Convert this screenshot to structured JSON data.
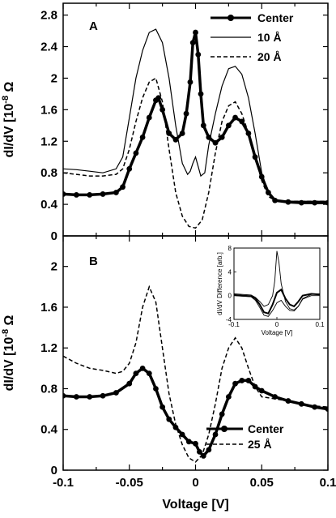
{
  "chart_data": [
    {
      "panel": "A",
      "type": "line",
      "xlabel": "Voltage [V]",
      "ylabel": "dI/dV [10^-8 Ω^-1]",
      "xlim": [
        -0.1,
        0.1
      ],
      "ylim": [
        0,
        2.95
      ],
      "yticks": [
        0,
        0.4,
        0.8,
        1.2,
        1.6,
        2,
        2.4,
        2.8
      ],
      "ytick_labels": [
        "0",
        "0.4",
        "0.8",
        "1.2",
        "1.6",
        "2",
        "2.4",
        "2.8"
      ],
      "legend_position": "top-right",
      "series": [
        {
          "name": "Center",
          "style": "thick-markers",
          "x": [
            -0.1,
            -0.09,
            -0.08,
            -0.07,
            -0.06,
            -0.055,
            -0.05,
            -0.045,
            -0.04,
            -0.035,
            -0.03,
            -0.028,
            -0.025,
            -0.02,
            -0.015,
            -0.01,
            -0.007,
            -0.004,
            -0.002,
            0,
            0.002,
            0.004,
            0.006,
            0.01,
            0.015,
            0.02,
            0.025,
            0.03,
            0.035,
            0.04,
            0.045,
            0.05,
            0.055,
            0.06,
            0.07,
            0.08,
            0.09,
            0.1
          ],
          "y": [
            0.53,
            0.52,
            0.52,
            0.53,
            0.55,
            0.62,
            0.85,
            1.05,
            1.25,
            1.5,
            1.72,
            1.75,
            1.6,
            1.3,
            1.22,
            1.3,
            1.55,
            1.95,
            2.45,
            2.58,
            2.3,
            1.8,
            1.4,
            1.25,
            1.18,
            1.25,
            1.4,
            1.5,
            1.45,
            1.3,
            1.0,
            0.75,
            0.55,
            0.45,
            0.43,
            0.42,
            0.42,
            0.42
          ]
        },
        {
          "name": "10 Å",
          "style": "thin-solid",
          "x": [
            -0.1,
            -0.09,
            -0.08,
            -0.07,
            -0.06,
            -0.055,
            -0.05,
            -0.045,
            -0.04,
            -0.035,
            -0.03,
            -0.025,
            -0.02,
            -0.015,
            -0.01,
            -0.006,
            -0.004,
            -0.002,
            0,
            0.002,
            0.004,
            0.007,
            0.01,
            0.015,
            0.02,
            0.025,
            0.03,
            0.035,
            0.04,
            0.045,
            0.05,
            0.055,
            0.06,
            0.07,
            0.08,
            0.09,
            0.1
          ],
          "y": [
            0.85,
            0.84,
            0.82,
            0.8,
            0.85,
            1.0,
            1.5,
            2.0,
            2.35,
            2.58,
            2.62,
            2.45,
            2.0,
            1.4,
            0.92,
            0.78,
            0.82,
            0.92,
            1.0,
            0.88,
            0.76,
            0.8,
            1.15,
            1.55,
            1.9,
            2.12,
            2.15,
            2.05,
            1.75,
            1.3,
            0.8,
            0.55,
            0.45,
            0.44,
            0.44,
            0.44,
            0.44
          ]
        },
        {
          "name": "20 Å",
          "style": "dashed",
          "x": [
            -0.1,
            -0.09,
            -0.08,
            -0.07,
            -0.06,
            -0.055,
            -0.05,
            -0.045,
            -0.04,
            -0.035,
            -0.03,
            -0.025,
            -0.02,
            -0.015,
            -0.01,
            -0.005,
            0,
            0.005,
            0.01,
            0.015,
            0.02,
            0.025,
            0.03,
            0.035,
            0.04,
            0.045,
            0.05,
            0.055,
            0.06,
            0.07,
            0.08,
            0.09,
            0.1
          ],
          "y": [
            0.8,
            0.78,
            0.76,
            0.76,
            0.78,
            0.85,
            1.1,
            1.45,
            1.75,
            1.95,
            2.0,
            1.7,
            1.1,
            0.55,
            0.25,
            0.12,
            0.1,
            0.2,
            0.55,
            1.05,
            1.45,
            1.65,
            1.7,
            1.55,
            1.3,
            1.0,
            0.7,
            0.5,
            0.45,
            0.44,
            0.44,
            0.44,
            0.44
          ]
        }
      ]
    },
    {
      "panel": "B",
      "type": "line",
      "xlabel": "Voltage [V]",
      "ylabel": "dI/dV [10^-8 Ω^-1]",
      "xlim": [
        -0.1,
        0.1
      ],
      "ylim": [
        0,
        2.3
      ],
      "yticks": [
        0,
        0.4,
        0.8,
        1.2,
        1.6,
        2
      ],
      "ytick_labels": [
        "0",
        "0.4",
        "0.8",
        "1.2",
        "1.6",
        "2"
      ],
      "xticks": [
        -0.1,
        -0.05,
        0,
        0.05,
        0.1
      ],
      "xtick_labels": [
        "-0.1",
        "-0.05",
        "0",
        "0.05",
        "0.1"
      ],
      "legend_position": "bottom-right",
      "series": [
        {
          "name": "Center",
          "style": "thick-markers",
          "x": [
            -0.1,
            -0.09,
            -0.08,
            -0.07,
            -0.06,
            -0.05,
            -0.045,
            -0.04,
            -0.035,
            -0.03,
            -0.025,
            -0.02,
            -0.015,
            -0.01,
            -0.005,
            0,
            0.003,
            0.006,
            0.01,
            0.015,
            0.02,
            0.025,
            0.03,
            0.035,
            0.04,
            0.045,
            0.05,
            0.06,
            0.07,
            0.08,
            0.09,
            0.1
          ],
          "y": [
            0.73,
            0.72,
            0.72,
            0.73,
            0.76,
            0.85,
            0.95,
            1.0,
            0.95,
            0.8,
            0.62,
            0.5,
            0.42,
            0.35,
            0.28,
            0.26,
            0.18,
            0.14,
            0.2,
            0.35,
            0.55,
            0.72,
            0.85,
            0.88,
            0.88,
            0.82,
            0.78,
            0.72,
            0.68,
            0.65,
            0.62,
            0.6
          ]
        },
        {
          "name": "25 Å",
          "style": "dashed",
          "x": [
            -0.1,
            -0.09,
            -0.08,
            -0.07,
            -0.06,
            -0.055,
            -0.05,
            -0.045,
            -0.04,
            -0.035,
            -0.03,
            -0.025,
            -0.02,
            -0.015,
            -0.01,
            -0.005,
            0,
            0.005,
            0.01,
            0.015,
            0.02,
            0.025,
            0.03,
            0.035,
            0.04,
            0.045,
            0.05,
            0.06,
            0.07,
            0.08,
            0.09,
            0.1
          ],
          "y": [
            1.12,
            1.05,
            1.0,
            0.98,
            0.95,
            0.97,
            1.05,
            1.25,
            1.6,
            1.8,
            1.65,
            1.2,
            0.75,
            0.45,
            0.25,
            0.12,
            0.08,
            0.15,
            0.35,
            0.65,
            1.0,
            1.2,
            1.3,
            1.2,
            1.0,
            0.82,
            0.72,
            0.7,
            0.68,
            0.65,
            0.63,
            0.62
          ]
        }
      ],
      "inset": {
        "ylabel": "dI/dV Difference [arb.]",
        "xlabel": "Voltage [V]",
        "xlim": [
          -0.1,
          0.1
        ],
        "ylim": [
          -4,
          8
        ],
        "yticks": [
          -4,
          0,
          4,
          8
        ],
        "ytick_labels": [
          "-4",
          "0",
          "4",
          "8"
        ],
        "xticks": [
          -0.1,
          0,
          0.1
        ],
        "xtick_labels": [
          "-0.1",
          "0",
          "0.1"
        ],
        "series": [
          {
            "style": "thin-solid",
            "x": [
              -0.1,
              -0.08,
              -0.06,
              -0.05,
              -0.04,
              -0.03,
              -0.02,
              -0.01,
              -0.005,
              0,
              0.005,
              0.01,
              0.02,
              0.03,
              0.04,
              0.05,
              0.06,
              0.08,
              0.1
            ],
            "y": [
              0.3,
              0.2,
              0.1,
              -0.3,
              -1.0,
              -1.8,
              -1.5,
              0.0,
              2.5,
              7.5,
              5.5,
              2.0,
              -1.0,
              -2.2,
              -2.4,
              -1.8,
              -0.5,
              0.2,
              0.3
            ]
          },
          {
            "style": "thick",
            "x": [
              -0.1,
              -0.08,
              -0.06,
              -0.05,
              -0.04,
              -0.03,
              -0.02,
              -0.01,
              0,
              0.01,
              0.02,
              0.03,
              0.04,
              0.05,
              0.06,
              0.08,
              0.1
            ],
            "y": [
              0.1,
              0.0,
              -0.1,
              -0.5,
              -1.5,
              -2.8,
              -3.0,
              -1.5,
              0.5,
              1.0,
              -0.5,
              -1.5,
              -1.8,
              -1.0,
              0.0,
              0.3,
              0.2
            ]
          },
          {
            "style": "thin-solid",
            "x": [
              -0.1,
              -0.08,
              -0.06,
              -0.05,
              -0.04,
              -0.03,
              -0.02,
              -0.01,
              0,
              0.01,
              0.02,
              0.03,
              0.04,
              0.05,
              0.06,
              0.08,
              0.1
            ],
            "y": [
              0.0,
              -0.1,
              -0.2,
              -0.8,
              -2.0,
              -3.3,
              -3.5,
              -2.5,
              -1.2,
              -0.8,
              -1.8,
              -2.5,
              -2.6,
              -1.8,
              -0.6,
              0.0,
              0.0
            ]
          }
        ]
      }
    }
  ]
}
